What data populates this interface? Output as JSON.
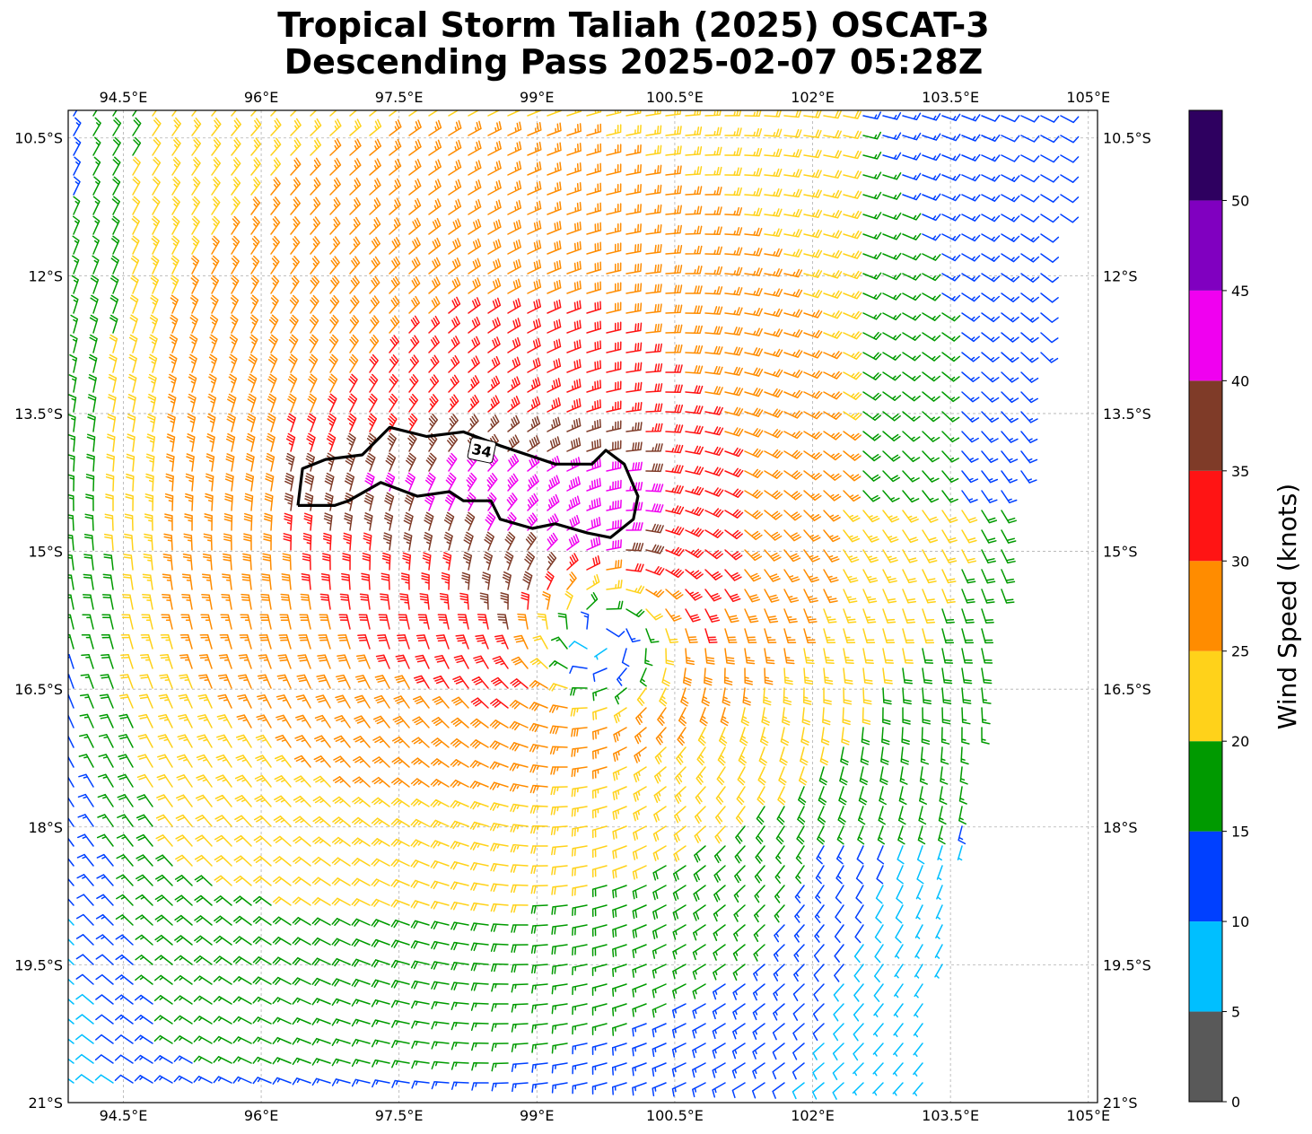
{
  "title_line1": "Tropical Storm Taliah (2025) OSCAT-3",
  "title_line2": "Descending Pass 2025-02-07 05:28Z",
  "map": {
    "lon_range": [
      93.9,
      105.1
    ],
    "lat_range": [
      -21.0,
      -10.2
    ],
    "lon_ticks": [
      {
        "value": 94.5,
        "label": "94.5°E"
      },
      {
        "value": 96.0,
        "label": "96°E"
      },
      {
        "value": 97.5,
        "label": "97.5°E"
      },
      {
        "value": 99.0,
        "label": "99°E"
      },
      {
        "value": 100.5,
        "label": "100.5°E"
      },
      {
        "value": 102.0,
        "label": "102°E"
      },
      {
        "value": 103.5,
        "label": "103.5°E"
      },
      {
        "value": 105.0,
        "label": "105°E"
      }
    ],
    "lat_ticks": [
      {
        "value": -10.5,
        "label": "10.5°S"
      },
      {
        "value": -12.0,
        "label": "12°S"
      },
      {
        "value": -13.5,
        "label": "13.5°S"
      },
      {
        "value": -15.0,
        "label": "15°S"
      },
      {
        "value": -16.5,
        "label": "16.5°S"
      },
      {
        "value": -18.0,
        "label": "18°S"
      },
      {
        "value": -19.5,
        "label": "19.5°S"
      },
      {
        "value": -21.0,
        "label": "21°S"
      }
    ],
    "gridlines": true,
    "storm_center": {
      "lon": 99.7,
      "lat": -15.9
    },
    "swath_east_edge": [
      {
        "lon": 104.9,
        "lat": -10.2
      },
      {
        "lon": 103.2,
        "lat": -21.0
      }
    ],
    "contour": {
      "value_label": "34",
      "label_position": {
        "lon": 98.4,
        "lat": -13.9
      },
      "outline": [
        {
          "lon": 96.4,
          "lat": -14.5
        },
        {
          "lon": 96.45,
          "lat": -14.1
        },
        {
          "lon": 96.7,
          "lat": -14.0
        },
        {
          "lon": 97.1,
          "lat": -13.95
        },
        {
          "lon": 97.4,
          "lat": -13.65
        },
        {
          "lon": 97.8,
          "lat": -13.75
        },
        {
          "lon": 98.2,
          "lat": -13.7
        },
        {
          "lon": 98.6,
          "lat": -13.85
        },
        {
          "lon": 99.2,
          "lat": -14.05
        },
        {
          "lon": 99.6,
          "lat": -14.05
        },
        {
          "lon": 99.75,
          "lat": -13.9
        },
        {
          "lon": 99.95,
          "lat": -14.05
        },
        {
          "lon": 100.1,
          "lat": -14.4
        },
        {
          "lon": 100.05,
          "lat": -14.65
        },
        {
          "lon": 99.8,
          "lat": -14.85
        },
        {
          "lon": 99.55,
          "lat": -14.8
        },
        {
          "lon": 99.2,
          "lat": -14.7
        },
        {
          "lon": 98.95,
          "lat": -14.75
        },
        {
          "lon": 98.6,
          "lat": -14.65
        },
        {
          "lon": 98.5,
          "lat": -14.45
        },
        {
          "lon": 98.2,
          "lat": -14.45
        },
        {
          "lon": 98.05,
          "lat": -14.35
        },
        {
          "lon": 97.7,
          "lat": -14.4
        },
        {
          "lon": 97.3,
          "lat": -14.25
        },
        {
          "lon": 96.95,
          "lat": -14.45
        },
        {
          "lon": 96.8,
          "lat": -14.5
        },
        {
          "lon": 96.6,
          "lat": -14.5
        },
        {
          "lon": 96.4,
          "lat": -14.5
        }
      ]
    }
  },
  "colorbar": {
    "label": "Wind Speed (knots)",
    "bins": [
      {
        "min": 0,
        "max": 5,
        "color": "#595959"
      },
      {
        "min": 5,
        "max": 10,
        "color": "#00bfff"
      },
      {
        "min": 10,
        "max": 15,
        "color": "#0040ff"
      },
      {
        "min": 15,
        "max": 20,
        "color": "#009a00"
      },
      {
        "min": 20,
        "max": 25,
        "color": "#ffd21a"
      },
      {
        "min": 25,
        "max": 30,
        "color": "#ff8c00"
      },
      {
        "min": 30,
        "max": 35,
        "color": "#ff1414"
      },
      {
        "min": 35,
        "max": 40,
        "color": "#7f3b28"
      },
      {
        "min": 40,
        "max": 45,
        "color": "#f000f0"
      },
      {
        "min": 45,
        "max": 50,
        "color": "#8000c0"
      },
      {
        "min": 50,
        "max": 55,
        "color": "#2e0060"
      }
    ],
    "tick_labels": [
      "0",
      "5",
      "10",
      "15",
      "20",
      "25",
      "30",
      "35",
      "40",
      "45",
      "50"
    ]
  }
}
